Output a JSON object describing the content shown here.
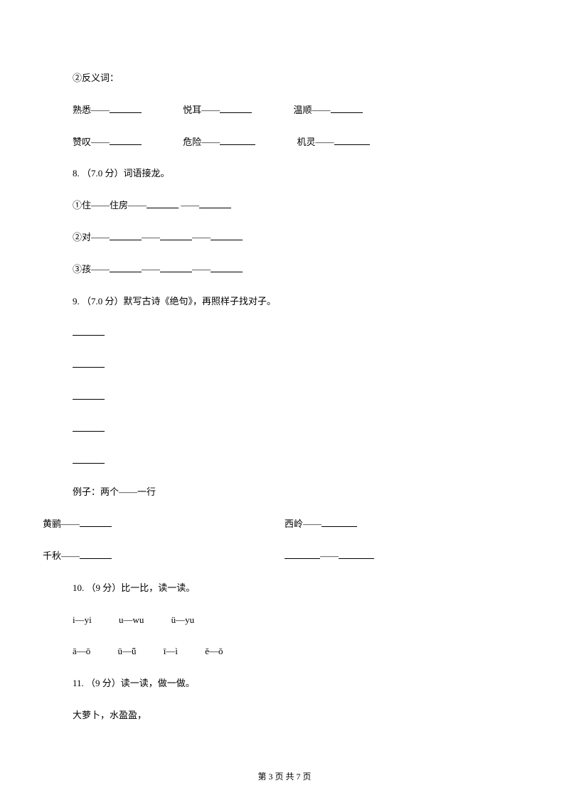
{
  "section2": {
    "title": "②反义词：",
    "row1": {
      "item1_label": "熟悉——",
      "item2_label": "悦耳——",
      "item3_label": "温顺——"
    },
    "row2": {
      "item1_label": "赞叹——",
      "item2_label": "危险——",
      "item3_label": "机灵——"
    }
  },
  "q8": {
    "title": "8. （7.0 分）词语接龙。",
    "line1_prefix": "①住——住房——",
    "line1_connector": " ——",
    "line2_prefix": "②对——",
    "line2_connector": "——",
    "line3_prefix": "③孩——",
    "line3_connector": "——"
  },
  "q9": {
    "title": "9. （7.0 分）默写古诗《绝句》，再照样子找对子。",
    "example": "例子：两个——一行",
    "pair1_left": "黄鹂——",
    "pair1_right": "西岭——",
    "pair2_left": "千秋——",
    "pair2_right_connector": "——"
  },
  "q10": {
    "title": "10. （9 分）比一比，读一读。",
    "row1": {
      "g1": "i—yi",
      "g2": "u—wu",
      "g3": "ü—yu"
    },
    "row2": {
      "g1": "ā—ō",
      "g2": "ū—ǖ",
      "g3": "ī—ì",
      "g4": "ě—ǒ"
    }
  },
  "q11": {
    "title": "11. （9 分）读一读，做一做。",
    "line1": "大萝卜，水盈盈，"
  },
  "footer": {
    "text": "第 3 页 共 7 页"
  }
}
